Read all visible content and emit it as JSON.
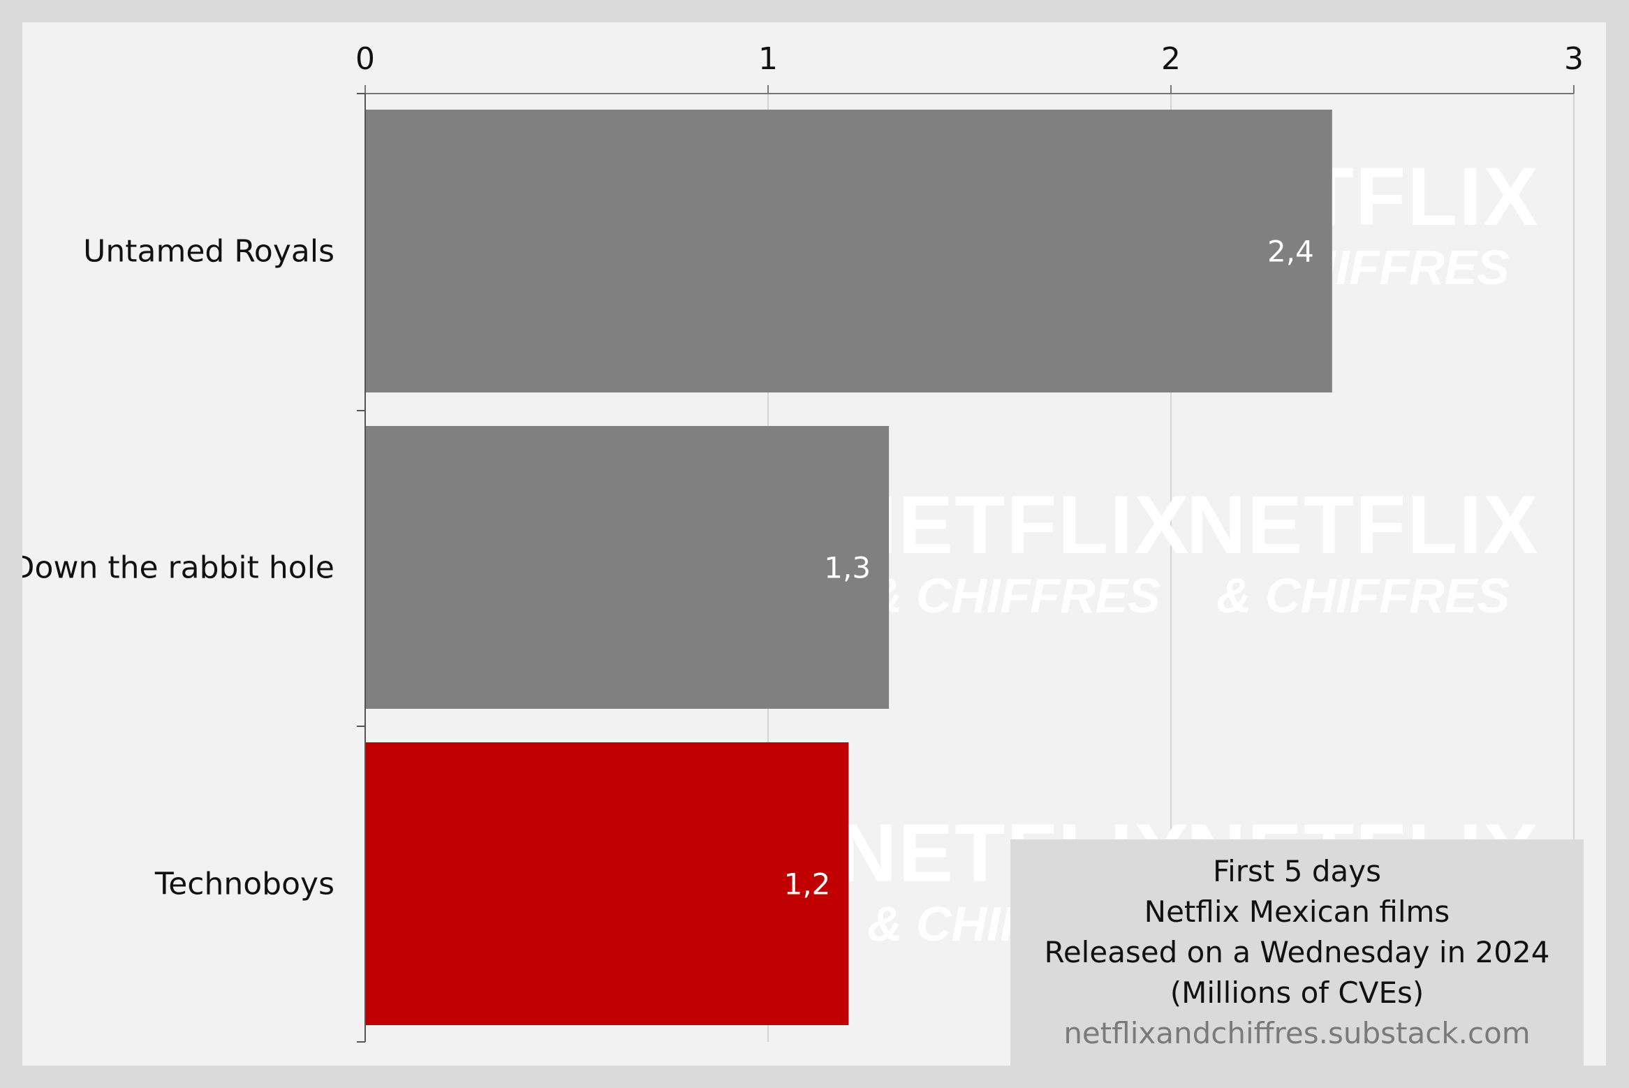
{
  "chart_data": {
    "type": "bar",
    "orientation": "horizontal",
    "categories": [
      "Untamed Royals",
      "Down the rabbit hole",
      "Technoboys"
    ],
    "values": [
      2.4,
      1.3,
      1.2
    ],
    "value_labels": [
      "2,4",
      "1,3",
      "1,2"
    ],
    "bar_colors": [
      "#808080",
      "#808080",
      "#c00000"
    ],
    "xlim": [
      0,
      3
    ],
    "x_ticks": [
      "0",
      "1",
      "2",
      "3"
    ],
    "x_axis_position": "top",
    "grid": true,
    "title": "",
    "xlabel": "",
    "ylabel": ""
  },
  "caption": {
    "lines": [
      "First 5 days",
      "Netflix Mexican films",
      "Released on a Wednesday in 2024",
      "(Millions of CVEs)"
    ],
    "source": "netflixandchiffres.substack.com"
  },
  "watermark": {
    "line1": "NETFLIX",
    "line2": "& CHIFFRES"
  },
  "colors": {
    "background": "#f2f2f2",
    "frame": "#dadada",
    "neutral_bar": "#808080",
    "highlight_bar": "#c00000"
  }
}
